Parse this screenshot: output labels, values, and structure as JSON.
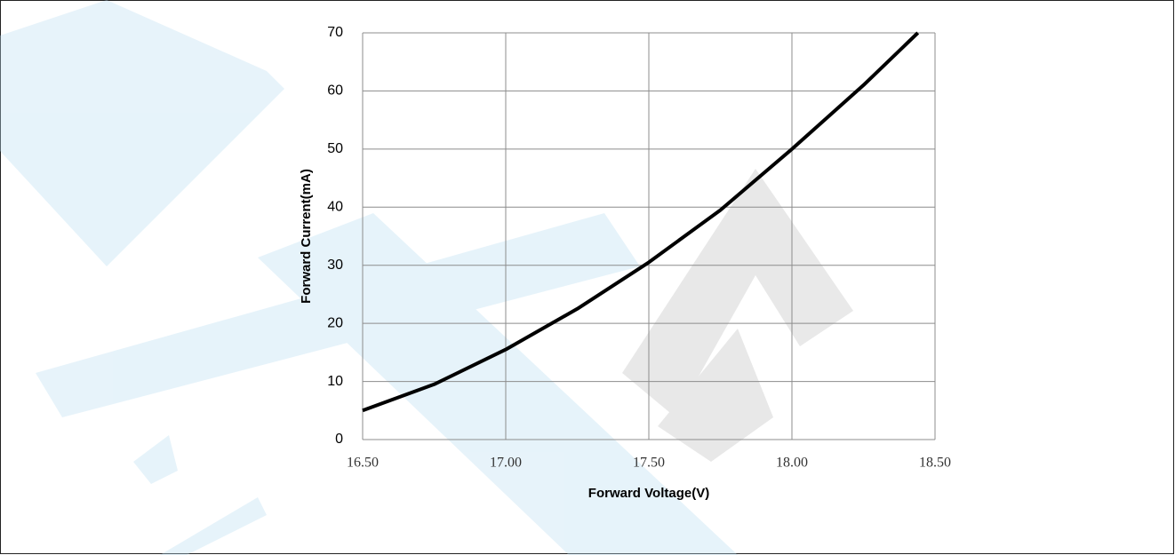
{
  "chart_data": {
    "type": "line",
    "x_label": "Forward Voltage(V)",
    "y_label": "Forward Current(mA)",
    "x": [
      16.5,
      16.75,
      17.0,
      17.25,
      17.5,
      17.75,
      18.0,
      18.25,
      18.44
    ],
    "series": [
      {
        "name": "Forward Current",
        "color": "#000000",
        "values": [
          5,
          9.5,
          15.5,
          22.5,
          30.5,
          39.5,
          50,
          61,
          70
        ]
      }
    ],
    "xlim": [
      16.5,
      18.5
    ],
    "xticks": [
      {
        "value": 16.5,
        "label": "16.50"
      },
      {
        "value": 17.0,
        "label": "17.00"
      },
      {
        "value": 17.5,
        "label": "17.50"
      },
      {
        "value": 18.0,
        "label": "18.00"
      },
      {
        "value": 18.5,
        "label": "18.50"
      }
    ],
    "ylim": [
      0,
      70
    ],
    "yticks": [
      0,
      10,
      20,
      30,
      40,
      50,
      60,
      70
    ],
    "grid": true
  }
}
